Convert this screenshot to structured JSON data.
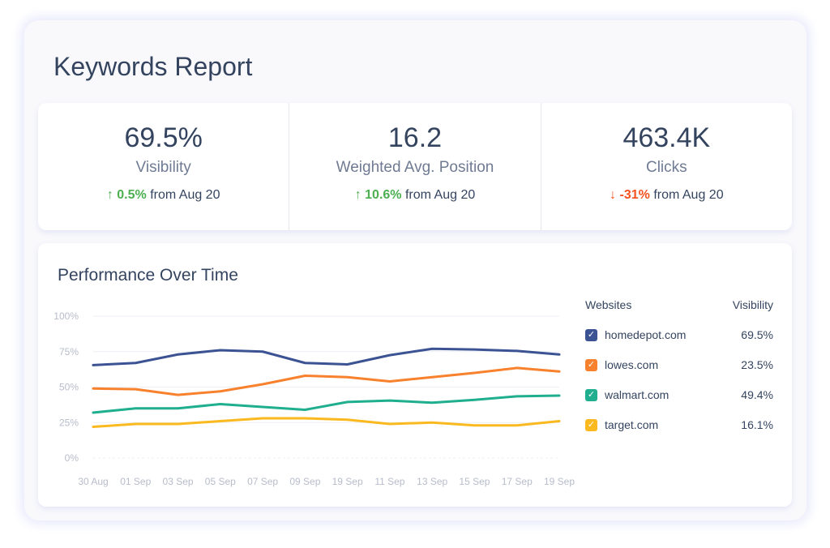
{
  "title": "Keywords Report",
  "stats": [
    {
      "value": "69.5%",
      "label": "Visibility",
      "arrow": "↑",
      "change": "0.5%",
      "direction": "up",
      "suffix": "from Aug 20"
    },
    {
      "value": "16.2",
      "label": "Weighted Avg. Position",
      "arrow": "↑",
      "change": "10.6%",
      "direction": "up",
      "suffix": "from Aug 20"
    },
    {
      "value": "463.4K",
      "label": "Clicks",
      "arrow": "↓",
      "change": "-31%",
      "direction": "down",
      "suffix": "from Aug 20"
    }
  ],
  "chart_data": {
    "type": "line",
    "title": "Performance Over Time",
    "categories": [
      "30 Aug",
      "01 Sep",
      "03 Sep",
      "05 Sep",
      "07 Sep",
      "09 Sep",
      "19 Sep",
      "11 Sep",
      "13 Sep",
      "15 Sep",
      "17 Sep",
      "19 Sep"
    ],
    "yticks": [
      "0%",
      "25%",
      "50%",
      "75%",
      "100%"
    ],
    "ylim": [
      0,
      100
    ],
    "grid": true,
    "legend_position": "right",
    "legend_headers": {
      "name": "Websites",
      "value": "Visibility"
    },
    "series": [
      {
        "name": "homedepot.com",
        "visibility": "69.5%",
        "color": "#3c5393",
        "values": [
          65.5,
          67,
          73,
          76,
          75,
          67,
          66,
          72.5,
          77,
          76.5,
          75.5,
          73
        ]
      },
      {
        "name": "lowes.com",
        "visibility": "23.5%",
        "color": "#f7812c",
        "values": [
          49,
          48.5,
          44.5,
          47,
          52,
          58,
          57,
          54,
          57,
          60,
          63.5,
          61
        ]
      },
      {
        "name": "walmart.com",
        "visibility": "49.4%",
        "color": "#1fae8e",
        "values": [
          32,
          35,
          35,
          38,
          36,
          34,
          39.5,
          40.5,
          39,
          41,
          43.5,
          44
        ]
      },
      {
        "name": "target.com",
        "visibility": "16.1%",
        "color": "#fbb920",
        "values": [
          22,
          24,
          24,
          26,
          28,
          28,
          27,
          24,
          25,
          23,
          23,
          26
        ]
      }
    ]
  }
}
